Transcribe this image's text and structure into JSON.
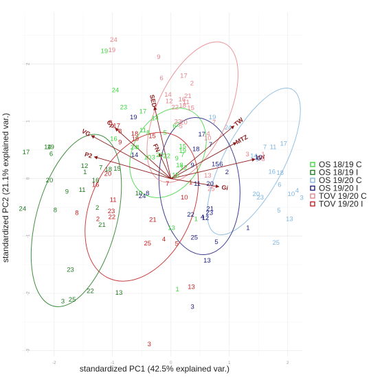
{
  "chart_data": {
    "type": "scatter",
    "title": "",
    "xlabel": "standardized PC1 (42.5% explained var.)",
    "ylabel": "standardized PC2 (21.1% explained var.)",
    "xlim": [
      -2.55,
      2.25
    ],
    "ylim": [
      -3.1,
      2.9
    ],
    "x_ticks": [
      -2,
      -1,
      0,
      1,
      2
    ],
    "y_ticks": [
      -3,
      -2,
      -1,
      0,
      1,
      2
    ],
    "grid": true,
    "legend_position": "right",
    "series": [
      {
        "name": "OS 18/19 C",
        "color": "#3dd63d",
        "points": [
          {
            "label": "19",
            "x": -1.14,
            "y": 2.23
          },
          {
            "label": "24",
            "x": -0.95,
            "y": 1.55
          },
          {
            "label": "23",
            "x": -0.81,
            "y": 1.25
          },
          {
            "label": "17",
            "x": -0.48,
            "y": 1.18
          },
          {
            "label": "14",
            "x": -0.27,
            "y": 1.06
          },
          {
            "label": "6",
            "x": 0.06,
            "y": 0.92
          },
          {
            "label": "2",
            "x": 0.12,
            "y": 0.95
          },
          {
            "label": "11",
            "x": -0.48,
            "y": 0.85
          },
          {
            "label": "8",
            "x": -0.39,
            "y": 0.81
          },
          {
            "label": "5",
            "x": -0.1,
            "y": 0.81
          },
          {
            "label": "16",
            "x": -0.98,
            "y": 0.7
          },
          {
            "label": "24",
            "x": -0.63,
            "y": 0.55
          },
          {
            "label": "4",
            "x": -0.57,
            "y": 0.55
          },
          {
            "label": "15",
            "x": 0.2,
            "y": 0.57
          },
          {
            "label": "19",
            "x": 0.2,
            "y": 0.49
          },
          {
            "label": "10",
            "x": -0.4,
            "y": 0.38
          },
          {
            "label": "3",
            "x": -0.3,
            "y": 0.38
          },
          {
            "label": "20",
            "x": -0.19,
            "y": 0.42
          },
          {
            "label": "22",
            "x": -0.07,
            "y": 0.4
          },
          {
            "label": "9",
            "x": 0.1,
            "y": 0.36
          },
          {
            "label": "7",
            "x": 0.2,
            "y": 0.42
          },
          {
            "label": "18",
            "x": 0.15,
            "y": 0.24
          },
          {
            "label": "12",
            "x": 0.22,
            "y": 0.2
          },
          {
            "label": "15",
            "x": 0.08,
            "y": 0.07
          },
          {
            "label": "1",
            "x": 0.43,
            "y": -0.7
          },
          {
            "label": "13",
            "x": 0.01,
            "y": -0.85
          },
          {
            "label": "1",
            "x": 0.11,
            "y": -1.92
          }
        ]
      },
      {
        "name": "OS 18/19 I",
        "color": "#1e7b1e",
        "points": [
          {
            "label": "17",
            "x": -2.48,
            "y": 0.47
          },
          {
            "label": "14",
            "x": -2.11,
            "y": 0.56
          },
          {
            "label": "19",
            "x": -2.06,
            "y": 0.56
          },
          {
            "label": "6",
            "x": -2.05,
            "y": 0.44
          },
          {
            "label": "12",
            "x": -1.48,
            "y": 0.23
          },
          {
            "label": "7",
            "x": -1.2,
            "y": 0.2
          },
          {
            "label": "18",
            "x": -1.07,
            "y": 0.17
          },
          {
            "label": "15",
            "x": -0.92,
            "y": 0.18
          },
          {
            "label": "1",
            "x": -1.47,
            "y": 0.12
          },
          {
            "label": "20",
            "x": -2.08,
            "y": -0.02
          },
          {
            "label": "9",
            "x": -1.78,
            "y": -0.22
          },
          {
            "label": "11",
            "x": -1.52,
            "y": -0.19
          },
          {
            "label": "16",
            "x": -1.29,
            "y": -0.02
          },
          {
            "label": "8",
            "x": -1.98,
            "y": -0.54
          },
          {
            "label": "24",
            "x": -2.54,
            "y": -0.52
          },
          {
            "label": "10",
            "x": -0.55,
            "y": -0.25
          },
          {
            "label": "2",
            "x": -1.26,
            "y": -0.5
          },
          {
            "label": "21",
            "x": -1.18,
            "y": -0.8
          },
          {
            "label": "23",
            "x": -1.72,
            "y": -1.58
          },
          {
            "label": "22",
            "x": -1.38,
            "y": -1.95
          },
          {
            "label": "25",
            "x": -1.69,
            "y": -2.1
          },
          {
            "label": "3",
            "x": -1.85,
            "y": -2.13
          },
          {
            "label": "13",
            "x": -0.89,
            "y": -1.98
          }
        ]
      },
      {
        "name": "OS 19/20 C",
        "color": "#7fb6e0",
        "points": [
          {
            "label": "19",
            "x": 0.71,
            "y": 1.08
          },
          {
            "label": "24",
            "x": 0.98,
            "y": 0.9
          },
          {
            "label": "17",
            "x": 1.93,
            "y": 0.62
          },
          {
            "label": "7",
            "x": 1.61,
            "y": 0.56
          },
          {
            "label": "11",
            "x": 1.75,
            "y": 0.56
          },
          {
            "label": "14",
            "x": 1.42,
            "y": 0.4
          },
          {
            "label": "9",
            "x": 1.48,
            "y": 0.34
          },
          {
            "label": "16",
            "x": 1.73,
            "y": 0.13
          },
          {
            "label": "18",
            "x": 1.87,
            "y": 0.11
          },
          {
            "label": "6",
            "x": 1.86,
            "y": -0.1
          },
          {
            "label": "20",
            "x": 1.46,
            "y": -0.26
          },
          {
            "label": "23",
            "x": 1.53,
            "y": -0.32
          },
          {
            "label": "10",
            "x": 2.06,
            "y": -0.26
          },
          {
            "label": "4",
            "x": 2.16,
            "y": -0.2
          },
          {
            "label": "3",
            "x": 2.24,
            "y": -0.33
          },
          {
            "label": "5",
            "x": 1.85,
            "y": -0.55
          },
          {
            "label": "13",
            "x": 2.03,
            "y": -0.7
          },
          {
            "label": "25",
            "x": 1.8,
            "y": -1.11
          }
        ]
      },
      {
        "name": "OS 19/20 I",
        "color": "#1b1b7e",
        "points": [
          {
            "label": "19",
            "x": -0.64,
            "y": 1.08
          },
          {
            "label": "17",
            "x": 0.53,
            "y": 0.78
          },
          {
            "label": "7",
            "x": 0.68,
            "y": 0.6
          },
          {
            "label": "18",
            "x": 0.43,
            "y": 0.52
          },
          {
            "label": "10",
            "x": 1.5,
            "y": 0.38
          },
          {
            "label": "15",
            "x": 0.76,
            "y": 0.26
          },
          {
            "label": "6",
            "x": 0.86,
            "y": 0.26
          },
          {
            "label": "14",
            "x": -0.62,
            "y": 0.42
          },
          {
            "label": "9",
            "x": 0.37,
            "y": 0.24
          },
          {
            "label": "2",
            "x": 0.96,
            "y": 0.12
          },
          {
            "label": "11",
            "x": 0.45,
            "y": -0.08
          },
          {
            "label": "20",
            "x": 0.67,
            "y": -0.08
          },
          {
            "label": "8",
            "x": -0.4,
            "y": -0.25
          },
          {
            "label": "24",
            "x": -0.49,
            "y": -0.3
          },
          {
            "label": "21",
            "x": 0.67,
            "y": -0.52
          },
          {
            "label": "23",
            "x": 0.66,
            "y": -0.59
          },
          {
            "label": "22",
            "x": 0.34,
            "y": -0.62
          },
          {
            "label": "4",
            "x": 0.54,
            "y": -0.66
          },
          {
            "label": "12",
            "x": 0.59,
            "y": -0.68
          },
          {
            "label": "1",
            "x": 1.32,
            "y": -0.85
          },
          {
            "label": "25",
            "x": 0.4,
            "y": -1.02
          },
          {
            "label": "5",
            "x": 0.78,
            "y": -1.1
          },
          {
            "label": "13",
            "x": 0.62,
            "y": -1.42
          },
          {
            "label": "3",
            "x": 0.37,
            "y": -2.23
          }
        ]
      },
      {
        "name": "TOV 19/20 C",
        "color": "#e6828a",
        "points": [
          {
            "label": "24",
            "x": -0.98,
            "y": 2.43
          },
          {
            "label": "19",
            "x": -1.01,
            "y": 2.25
          },
          {
            "label": "9",
            "x": -0.21,
            "y": 2.13
          },
          {
            "label": "6",
            "x": -0.16,
            "y": 1.76
          },
          {
            "label": "17",
            "x": 0.22,
            "y": 1.8
          },
          {
            "label": "2",
            "x": 0.36,
            "y": 1.67
          },
          {
            "label": "14",
            "x": -0.05,
            "y": 1.47
          },
          {
            "label": "12",
            "x": -0.03,
            "y": 1.36
          },
          {
            "label": "22",
            "x": 0.07,
            "y": 1.25
          },
          {
            "label": "18",
            "x": 0.2,
            "y": 1.28
          },
          {
            "label": "16",
            "x": 0.19,
            "y": 1.39
          },
          {
            "label": "21",
            "x": 0.29,
            "y": 1.45
          },
          {
            "label": "11",
            "x": 0.26,
            "y": 1.34
          },
          {
            "label": "15",
            "x": 0.34,
            "y": 1.24
          },
          {
            "label": "23",
            "x": 0.12,
            "y": 1.0
          },
          {
            "label": "20",
            "x": 0.22,
            "y": 0.99
          },
          {
            "label": "7",
            "x": 0.74,
            "y": 0.99
          },
          {
            "label": "5",
            "x": 0.17,
            "y": 0.92
          },
          {
            "label": "4",
            "x": 0.64,
            "y": 0.79
          },
          {
            "label": "10",
            "x": 0.63,
            "y": 0.71
          },
          {
            "label": "3",
            "x": 1.31,
            "y": 0.43
          },
          {
            "label": "1",
            "x": 1.58,
            "y": 0.43
          },
          {
            "label": "8",
            "x": 1.58,
            "y": 0.35
          },
          {
            "label": "13",
            "x": 0.63,
            "y": 0.06
          },
          {
            "label": "25",
            "x": 0.69,
            "y": -0.17
          }
        ]
      },
      {
        "name": "TOV 19/20 I",
        "color": "#c21e1e",
        "points": [
          {
            "label": "6",
            "x": -1.03,
            "y": 0.98
          },
          {
            "label": "17",
            "x": -0.93,
            "y": 0.93
          },
          {
            "label": "8",
            "x": -0.87,
            "y": 0.83
          },
          {
            "label": "18",
            "x": -0.62,
            "y": 0.79
          },
          {
            "label": "15",
            "x": -0.32,
            "y": 0.75
          },
          {
            "label": "19",
            "x": -0.61,
            "y": 0.7
          },
          {
            "label": "9",
            "x": -0.87,
            "y": 0.64
          },
          {
            "label": "20",
            "x": -1.08,
            "y": 0.09
          },
          {
            "label": "7",
            "x": -0.06,
            "y": -0.08
          },
          {
            "label": "16",
            "x": -1.29,
            "y": -0.1
          },
          {
            "label": "10",
            "x": 0.23,
            "y": -0.32
          },
          {
            "label": "11",
            "x": -0.99,
            "y": -0.36
          },
          {
            "label": "23",
            "x": -1.02,
            "y": -0.56
          },
          {
            "label": "8",
            "x": -1.61,
            "y": -0.59
          },
          {
            "label": "2",
            "x": -1.25,
            "y": -0.7
          },
          {
            "label": "22",
            "x": -1.01,
            "y": -0.66
          },
          {
            "label": "21",
            "x": -0.31,
            "y": -0.71
          },
          {
            "label": "1",
            "x": 0.34,
            "y": -0.06
          },
          {
            "label": "25",
            "x": -0.4,
            "y": -1.12
          },
          {
            "label": "4",
            "x": -0.12,
            "y": -1.05
          },
          {
            "label": "5",
            "x": 0.1,
            "y": -1.13
          },
          {
            "label": "13",
            "x": 0.35,
            "y": -1.88
          },
          {
            "label": "3",
            "x": -0.37,
            "y": -2.88
          }
        ]
      }
    ],
    "ellipses": [
      {
        "group": "OS 18/19 C",
        "cx": -0.05,
        "cy": 0.45,
        "rx": 0.82,
        "ry": 0.6,
        "angle_deg": -60
      },
      {
        "group": "OS 18/19 I",
        "cx": -1.62,
        "cy": -0.73,
        "rx": 1.52,
        "ry": 0.7,
        "angle_deg": -75
      },
      {
        "group": "OS 19/20 C",
        "cx": 1.42,
        "cy": 0.3,
        "rx": 1.4,
        "ry": 0.52,
        "angle_deg": -62
      },
      {
        "group": "OS 19/20 I",
        "cx": 0.49,
        "cy": -0.13,
        "rx": 1.18,
        "ry": 0.7,
        "angle_deg": -95
      },
      {
        "group": "TOV 19/20 C",
        "cx": 0.37,
        "cy": 1.16,
        "rx": 1.3,
        "ry": 0.62,
        "angle_deg": -65
      },
      {
        "group": "TOV 19/20 I",
        "cx": -0.5,
        "cy": -0.49,
        "rx": 1.35,
        "ry": 0.88,
        "angle_deg": -65
      }
    ],
    "loadings": [
      {
        "label": "SED",
        "x": -0.28,
        "y": 1.25
      },
      {
        "label": "TW",
        "x": 1.08,
        "y": 0.92
      },
      {
        "label": "MTZ",
        "x": 1.12,
        "y": 0.63
      },
      {
        "label": "GY",
        "x": 1.44,
        "y": 0.34
      },
      {
        "label": "VG",
        "x": -1.36,
        "y": 0.75
      },
      {
        "label": "Cp",
        "x": -0.95,
        "y": 0.88
      },
      {
        "label": "P2",
        "x": -1.31,
        "y": 0.38
      },
      {
        "label": "FN",
        "x": -0.2,
        "y": 0.44
      },
      {
        "label": "Gi",
        "x": 0.82,
        "y": -0.14
      }
    ]
  }
}
